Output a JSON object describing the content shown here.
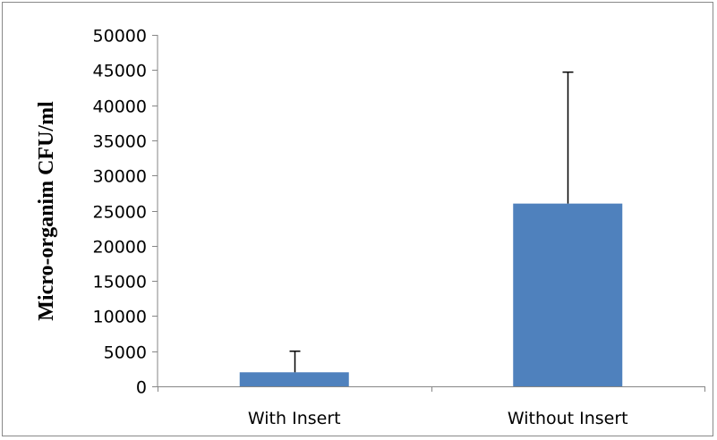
{
  "chart_data": {
    "type": "bar",
    "title": "",
    "xlabel": "",
    "ylabel": "Micro-organim CFU/ml",
    "categories": [
      "With Insert",
      "Without Insert"
    ],
    "values": [
      2000,
      26000
    ],
    "error_bars": [
      3000,
      18700
    ],
    "ylim": [
      0,
      50000
    ],
    "yticks": [
      0,
      5000,
      10000,
      15000,
      20000,
      25000,
      30000,
      35000,
      40000,
      45000,
      50000
    ],
    "ytick_labels": [
      "0",
      "5000",
      "10000",
      "15000",
      "20000",
      "25000",
      "30000",
      "35000",
      "40000",
      "45000",
      "50000"
    ],
    "grid": false,
    "legend": "none",
    "bar_color": "#4f81bd"
  }
}
